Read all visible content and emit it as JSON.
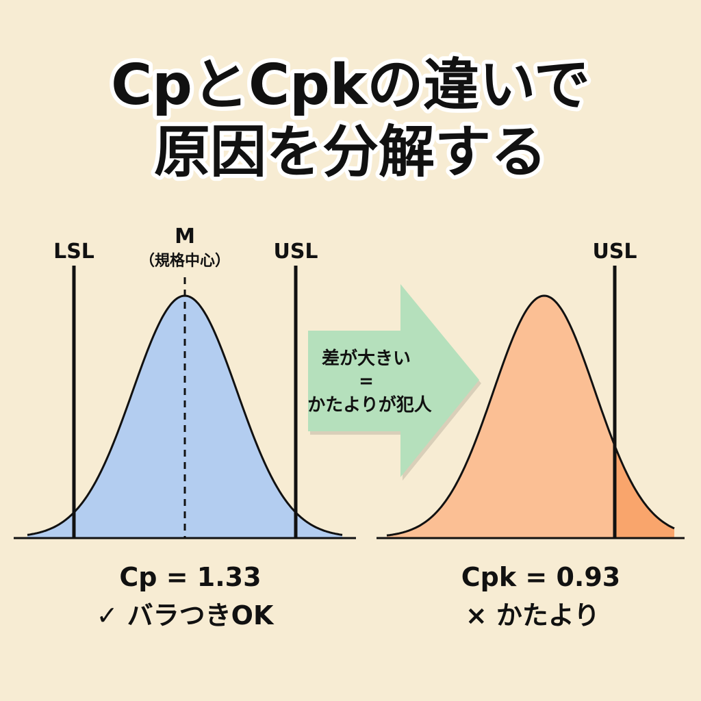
{
  "title": {
    "line1": "CpとCpkの違いで",
    "line2": "原因を分解する"
  },
  "left_chart": {
    "lsl_label": "LSL",
    "usl_label": "USL",
    "m_label": "M",
    "m_sub_label": "（規格中心）",
    "result_value": "Cp = 1.33",
    "result_note": "✓ バラつきOK",
    "fill_color": "#b3cdf0"
  },
  "arrow": {
    "line1": "差が大きい",
    "line2": "=",
    "line3": "かたよりが犯人",
    "color": "#b5e0bc"
  },
  "right_chart": {
    "usl_label": "USL",
    "result_value": "Cpk = 0.93",
    "result_note": "× かたより",
    "fill_color": "#fbbf94",
    "out_of_spec_color": "#f9a56c"
  }
}
